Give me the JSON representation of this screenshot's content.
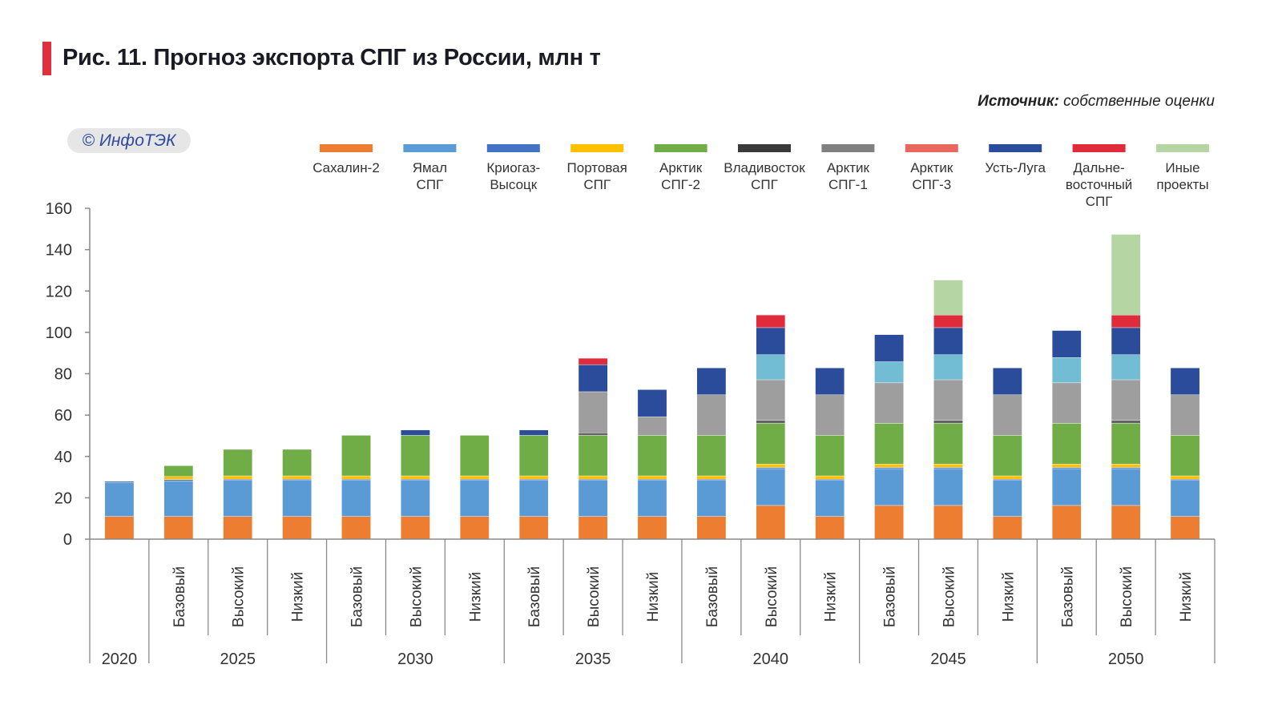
{
  "header": {
    "title": "Рис. 11. Прогноз экспорта СПГ из России, млн т",
    "source_label": "Источник:",
    "source_text": "собственные оценки",
    "logo": "© ИнфоТЭК"
  },
  "chart_data": {
    "type": "bar",
    "stacked": true,
    "title": "Рис. 11. Прогноз экспорта СПГ из России, млн т",
    "ylabel": "млн т",
    "ylim": [
      0,
      160
    ],
    "yticks": [
      "0",
      "20",
      "40",
      "60",
      "80",
      "100",
      "120",
      "140",
      "160"
    ],
    "legend_position": "top",
    "categories": [
      {
        "year": "2020",
        "scenario": ""
      },
      {
        "year": "2025",
        "scenario": "Базовый"
      },
      {
        "year": "2025",
        "scenario": "Высокий"
      },
      {
        "year": "2025",
        "scenario": "Низкий"
      },
      {
        "year": "2030",
        "scenario": "Базовый"
      },
      {
        "year": "2030",
        "scenario": "Высокий"
      },
      {
        "year": "2030",
        "scenario": "Низкий"
      },
      {
        "year": "2035",
        "scenario": "Базовый"
      },
      {
        "year": "2035",
        "scenario": "Высокий"
      },
      {
        "year": "2035",
        "scenario": "Низкий"
      },
      {
        "year": "2040",
        "scenario": "Базовый"
      },
      {
        "year": "2040",
        "scenario": "Высокий"
      },
      {
        "year": "2040",
        "scenario": "Низкий"
      },
      {
        "year": "2045",
        "scenario": "Базовый"
      },
      {
        "year": "2045",
        "scenario": "Высокий"
      },
      {
        "year": "2045",
        "scenario": "Низкий"
      },
      {
        "year": "2050",
        "scenario": "Базовый"
      },
      {
        "year": "2050",
        "scenario": "Высокий"
      },
      {
        "year": "2050",
        "scenario": "Низкий"
      }
    ],
    "years": [
      "2020",
      "2025",
      "2030",
      "2035",
      "2040",
      "2045",
      "2050"
    ],
    "series": [
      {
        "name": "Сахалин-2",
        "legend_lines": [
          "Сахалин-2"
        ],
        "color": "#ed7d31",
        "legend_color": "#ed7d31",
        "values": [
          11,
          11,
          11,
          11,
          11,
          11,
          11,
          11,
          11,
          11,
          11,
          16.3,
          11,
          16.3,
          16.3,
          11,
          16.3,
          16.3,
          11
        ]
      },
      {
        "name": "Ямал СПГ",
        "legend_lines": [
          "Ямал",
          "СПГ"
        ],
        "color": "#5b9bd5",
        "legend_color": "#5b9bd5",
        "values": [
          16.4,
          17.2,
          17.4,
          17.4,
          17.4,
          17.4,
          17.4,
          17.4,
          17.4,
          17.4,
          17.4,
          17.8,
          17.4,
          17.8,
          17.8,
          17.4,
          17.8,
          17.8,
          17.4
        ]
      },
      {
        "name": "Криогаз-Высоцк",
        "legend_lines": [
          "Криогаз-",
          "Высоцк"
        ],
        "color": "#4472c4",
        "legend_color": "#4472c4",
        "values": [
          0.6,
          0.6,
          0.6,
          0.6,
          0.6,
          0.6,
          0.6,
          0.6,
          0.6,
          0.6,
          0.6,
          0.6,
          0.6,
          0.6,
          0.6,
          0.6,
          0.6,
          0.6,
          0.6
        ]
      },
      {
        "name": "Портовая СПГ",
        "legend_lines": [
          "Портовая",
          "СПГ"
        ],
        "color": "#ffc000",
        "legend_color": "#ffc000",
        "values": [
          0,
          1.5,
          1.6,
          1.6,
          1.6,
          1.6,
          1.6,
          1.6,
          1.6,
          1.6,
          1.6,
          1.6,
          1.6,
          1.6,
          1.6,
          1.6,
          1.6,
          1.6,
          1.6
        ]
      },
      {
        "name": "Арктик СПГ-2",
        "legend_lines": [
          "Арктик",
          "СПГ-2"
        ],
        "color": "#70ad47",
        "legend_color": "#70ad47",
        "values": [
          0,
          5.2,
          12.8,
          12.8,
          19.6,
          19.6,
          19.6,
          19.6,
          19.6,
          19.6,
          19.6,
          19.7,
          19.6,
          19.7,
          19.7,
          19.6,
          19.7,
          19.7,
          19.6
        ]
      },
      {
        "name": "Владивосток СПГ",
        "legend_lines": [
          "Владивосток",
          "СПГ"
        ],
        "color": "#636363",
        "legend_color": "#3a3a3a",
        "values": [
          0,
          0,
          0,
          0,
          0,
          0,
          0,
          0,
          1.2,
          0,
          0,
          1.5,
          0,
          0,
          1.5,
          0,
          0,
          1.5,
          0
        ]
      },
      {
        "name": "Арктик СПГ-1",
        "legend_lines": [
          "Арктик",
          "СПГ-1"
        ],
        "color": "#9e9e9e",
        "legend_color": "#808080",
        "values": [
          0,
          0,
          0,
          0,
          0,
          0,
          0,
          0,
          19.9,
          9,
          19.6,
          19.6,
          19.6,
          19.6,
          19.6,
          19.6,
          19.6,
          19.6,
          19.6
        ]
      },
      {
        "name": "Арктик СПГ-3",
        "legend_lines": [
          "Арктик",
          "СПГ-3"
        ],
        "color": "#72bcd4",
        "legend_color": "#e8685f",
        "values": [
          0,
          0,
          0,
          0,
          0,
          0,
          0,
          0,
          0,
          0,
          0,
          12.1,
          0,
          10.2,
          12.1,
          0,
          12.2,
          12.1,
          0
        ]
      },
      {
        "name": "Усть-Луга",
        "legend_lines": [
          "Усть-Луга"
        ],
        "color": "#2b4c9b",
        "legend_color": "#2b4c9b",
        "values": [
          0,
          0,
          0,
          0,
          0,
          2.6,
          0,
          2.6,
          13.1,
          13.1,
          13,
          13.1,
          13,
          13.1,
          13.1,
          13,
          13.1,
          13.1,
          13
        ]
      },
      {
        "name": "Дальневосточный СПГ",
        "legend_lines": [
          "Дальне-",
          "восточный",
          "СПГ"
        ],
        "color": "#e02b3a",
        "legend_color": "#e02b3a",
        "values": [
          0,
          0,
          0,
          0,
          0,
          0,
          0,
          0,
          3.1,
          0,
          0,
          6.1,
          0,
          0,
          6.1,
          0,
          0,
          6.1,
          0
        ]
      },
      {
        "name": "Иные проекты",
        "legend_lines": [
          "Иные",
          "проекты"
        ],
        "color": "#b5d6a3",
        "legend_color": "#b5d6a3",
        "values": [
          0,
          0,
          0,
          0,
          0,
          0,
          0,
          0,
          0,
          0,
          0,
          0,
          0,
          0,
          16.9,
          0,
          0,
          39,
          0
        ]
      }
    ]
  }
}
